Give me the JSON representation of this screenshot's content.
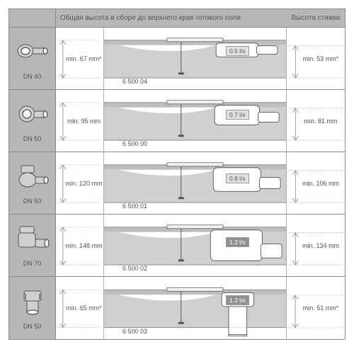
{
  "colors": {
    "row_bg": "#b7b7b7",
    "border": "#8a8a8a",
    "dim_border": "#b0b0b0",
    "text": "#555555",
    "floor_light": "#d0d0d0",
    "floor_dark": "#888888",
    "dim_line": "#9c9c9c",
    "flow_bg_light": "#e0e0e0",
    "flow_bg_dark": "#909090",
    "white": "#ffffff"
  },
  "header": {
    "title_main": "Общая высота в сборе до верхнего края готового пола",
    "title_right": "Высота стяжки"
  },
  "rows": [
    {
      "dn": "DN 40",
      "height_label": "min. 67 mm*",
      "model": "6 500 04",
      "flow": "0.5 l/s",
      "flow_bg": "#e0e0e0",
      "screed_label": "min. 53 mm*",
      "icon": "A",
      "diagram": "short"
    },
    {
      "dn": "DN 50",
      "height_label": "min. 95 mm",
      "model": "6 500 00",
      "flow": "0.7 l/s",
      "flow_bg": "#e0e0e0",
      "screed_label": "min. 81 mm",
      "icon": "B",
      "diagram": "mid1"
    },
    {
      "dn": "DN 50",
      "height_label": "min. 120 mm",
      "model": "6 500 01",
      "flow": "0.8 l/s",
      "flow_bg": "#e0e0e0",
      "screed_label": "min. 106 mm",
      "icon": "C",
      "diagram": "mid2"
    },
    {
      "dn": "DN 70",
      "height_label": "min. 148 mm",
      "model": "6 500 02",
      "flow": "1.2 l/s",
      "flow_bg": "#909090",
      "screed_label": "min. 134 mm",
      "icon": "D",
      "diagram": "tall"
    },
    {
      "dn": "DN 50",
      "height_label": "min. 65 mm*",
      "model": "6 500 03",
      "flow": "1.3 l/s",
      "flow_bg": "#909090",
      "screed_label": "min. 51 mm*",
      "icon": "E",
      "diagram": "vertical"
    }
  ]
}
